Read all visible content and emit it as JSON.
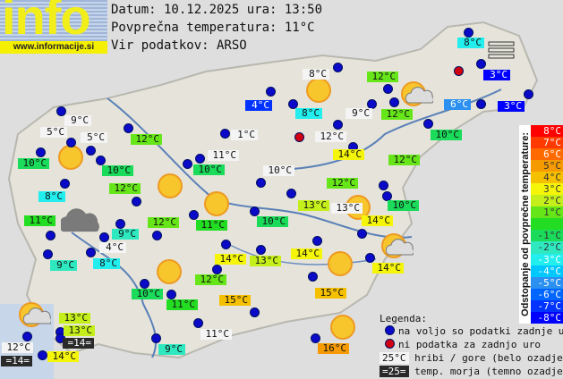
{
  "logo": {
    "text": "info",
    "url": "www.informacije.si"
  },
  "header": {
    "date_line": "Datum: 10.12.2025 ura: 13:50",
    "avg_line": "Povprečna temperatura: 11°C",
    "source_line": "Vir podatkov: ARSO"
  },
  "colors": {
    "mountain": "#f4f4f4",
    "sea": "#2a2a2a",
    "d-8": "#0000ff",
    "d-7": "#0033ff",
    "d-6": "#0066ff",
    "d-5": "#2b90f0",
    "d-4": "#00c8ff",
    "d-3": "#22eeee",
    "d-2": "#2ee8c0",
    "d-1": "#1adb5a",
    "d0": "#22dd22",
    "d1": "#66e619",
    "d2": "#c4ef1a",
    "d3": "#f5f50a",
    "d4": "#f5c000",
    "d5": "#f59a00",
    "d6": "#ff6a00",
    "d7": "#ff3a00",
    "d8": "#ff0000",
    "dot_available": "#0a0ac8",
    "dot_missing": "#d00010"
  },
  "map": {
    "labels": [
      {
        "text": "9°C",
        "type": "mountain"
      },
      {
        "text": "5°C",
        "type": "mountain"
      },
      {
        "text": "5°C",
        "type": "mountain"
      },
      {
        "text": "12°C",
        "type": "d1"
      },
      {
        "text": "1°C",
        "type": "mountain"
      },
      {
        "text": "4°C",
        "type": "d-7"
      },
      {
        "text": "8°C",
        "type": "d-3"
      },
      {
        "text": "8°C",
        "type": "mountain"
      },
      {
        "text": "12°C",
        "type": "d1"
      },
      {
        "text": "9°C",
        "type": "mountain"
      },
      {
        "text": "12°C",
        "type": "d1"
      },
      {
        "text": "6°C",
        "type": "d-5"
      },
      {
        "text": "3°C",
        "type": "d-8"
      },
      {
        "text": "3°C",
        "type": "d-8"
      },
      {
        "text": "8°C",
        "type": "d-3"
      },
      {
        "text": "12°C",
        "type": "mountain"
      },
      {
        "text": "10°C",
        "type": "d-1"
      },
      {
        "text": "14°C",
        "type": "d3"
      },
      {
        "text": "12°C",
        "type": "d1"
      },
      {
        "text": "10°C",
        "type": "d-1"
      },
      {
        "text": "10°C",
        "type": "d-1"
      },
      {
        "text": "11°C",
        "type": "mountain"
      },
      {
        "text": "10°C",
        "type": "mountain"
      },
      {
        "text": "10°C",
        "type": "d-1"
      },
      {
        "text": "8°C",
        "type": "d-3"
      },
      {
        "text": "12°C",
        "type": "d1"
      },
      {
        "text": "12°C",
        "type": "d1"
      },
      {
        "text": "13°C",
        "type": "d2"
      },
      {
        "text": "13°C",
        "type": "mountain"
      },
      {
        "text": "14°C",
        "type": "d3"
      },
      {
        "text": "10°C",
        "type": "d-1"
      },
      {
        "text": "11°C",
        "type": "d0"
      },
      {
        "text": "12°C",
        "type": "d1"
      },
      {
        "text": "11°C",
        "type": "d0"
      },
      {
        "text": "10°C",
        "type": "d-1"
      },
      {
        "text": "9°C",
        "type": "d-2"
      },
      {
        "text": "4°C",
        "type": "mountain"
      },
      {
        "text": "9°C",
        "type": "d-2"
      },
      {
        "text": "8°C",
        "type": "d-3"
      },
      {
        "text": "14°C",
        "type": "d3"
      },
      {
        "text": "13°C",
        "type": "d2"
      },
      {
        "text": "14°C",
        "type": "d3"
      },
      {
        "text": "14°C",
        "type": "d3"
      },
      {
        "text": "12°C",
        "type": "d1"
      },
      {
        "text": "15°C",
        "type": "d4"
      },
      {
        "text": "10°C",
        "type": "d-1"
      },
      {
        "text": "11°C",
        "type": "d0"
      },
      {
        "text": "15°C",
        "type": "d4"
      },
      {
        "text": "13°C",
        "type": "d2"
      },
      {
        "text": "13°C",
        "type": "d2"
      },
      {
        "text": "12°C",
        "type": "mountain"
      },
      {
        "text": "=14=",
        "type": "sea"
      },
      {
        "text": "=14=",
        "type": "sea"
      },
      {
        "text": "14°C",
        "type": "d3"
      },
      {
        "text": "11°C",
        "type": "mountain"
      },
      {
        "text": "9°C",
        "type": "d-2"
      },
      {
        "text": "16°C",
        "type": "d5"
      }
    ],
    "icons": [
      "sun",
      "sun",
      "sun",
      "sun",
      "sun",
      "sun",
      "sun",
      "sun",
      "sun-cloud",
      "sun-cloud",
      "sun-cloud",
      "cloud",
      "fog"
    ]
  },
  "scale": {
    "title": "Odstopanje od povprečne temperature:",
    "cells": [
      {
        "label": "8°C",
        "key": "d8"
      },
      {
        "label": "7°C",
        "key": "d7"
      },
      {
        "label": "6°C",
        "key": "d6"
      },
      {
        "label": "5°C",
        "key": "d5"
      },
      {
        "label": "4°C",
        "key": "d4"
      },
      {
        "label": "3°C",
        "key": "d3"
      },
      {
        "label": "2°C",
        "key": "d2"
      },
      {
        "label": "1°C",
        "key": "d1"
      },
      {
        "label": "",
        "key": "d0"
      },
      {
        "label": "-1°C",
        "key": "d-1"
      },
      {
        "label": "-2°C",
        "key": "d-2"
      },
      {
        "label": "-3°C",
        "key": "d-3"
      },
      {
        "label": "-4°C",
        "key": "d-4"
      },
      {
        "label": "-5°C",
        "key": "d-5"
      },
      {
        "label": "-6°C",
        "key": "d-6"
      },
      {
        "label": "-7°C",
        "key": "d-7"
      },
      {
        "label": "-8°C",
        "key": "d-8"
      }
    ]
  },
  "legend": {
    "title": "Legenda:",
    "available": "na voljo so podatki zadnje ure",
    "missing": "ni podatka za zadnjo uro",
    "mountain_sample": "25°C",
    "mountain_text": "hribi / gore (belo ozadje)",
    "sea_sample": "=25=",
    "sea_text": "temp. morja (temno ozadje)"
  }
}
